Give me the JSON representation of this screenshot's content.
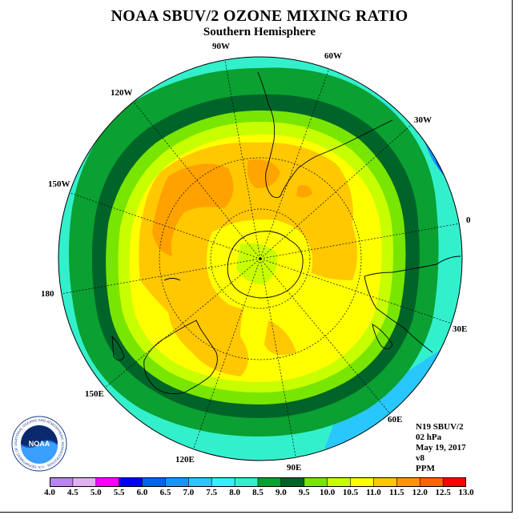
{
  "title": "NOAA SBUV/2 OZONE MIXING RATIO",
  "subtitle": "Southern Hemisphere",
  "longitude_labels": [
    "90W",
    "60W",
    "30W",
    "0",
    "30E",
    "60E",
    "90E",
    "120E",
    "150E",
    "180",
    "150W",
    "120W"
  ],
  "info": {
    "satellite": "N19 SBUV/2",
    "pressure_level": "02 hPa",
    "date": "May 19, 2017",
    "version": "v8",
    "units": "PPM"
  },
  "logo": {
    "text": "NOAA",
    "ring_text": "NATIONAL OCEANIC AND ATMOSPHERIC ADMINISTRATION · U.S. DEPARTMENT OF COMMERCE"
  },
  "colorbar": {
    "levels": [
      "4.0",
      "4.5",
      "5.0",
      "5.5",
      "6.0",
      "6.5",
      "7.0",
      "7.5",
      "8.0",
      "8.5",
      "9.0",
      "9.5",
      "10.0",
      "10.5",
      "11.0",
      "11.5",
      "12.0",
      "12.5",
      "13.0"
    ],
    "colors": [
      "#b884f0",
      "#e0b0f0",
      "#ff00ff",
      "#0000ff",
      "#0064f0",
      "#1496ff",
      "#28c8ff",
      "#33f0ff",
      "#33f0cc",
      "#0aa032",
      "#006428",
      "#78e600",
      "#c8ff00",
      "#ffff00",
      "#ffc800",
      "#ff9600",
      "#ff6400",
      "#ff0000",
      "#8b5a2b"
    ]
  }
}
